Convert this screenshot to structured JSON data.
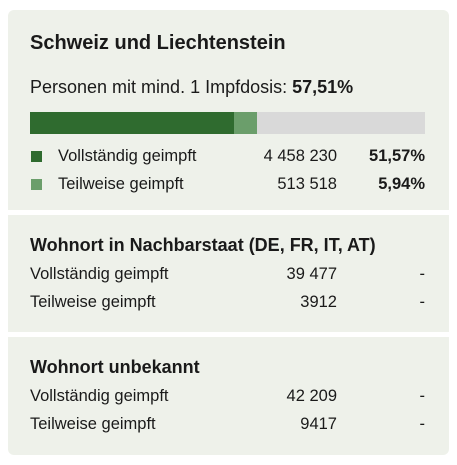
{
  "sections": [
    {
      "title": "Schweiz und Liechtenstein",
      "summary_label": "Personen mit mind. 1 Impfdosis:",
      "summary_value": "57,51%",
      "bar_background": "#d9d9d9",
      "rows": [
        {
          "label": "Vollständig geimpft",
          "count": "4 458 230",
          "percent": 51.57,
          "percent_label": "51,57%",
          "color": "#2f6b2f"
        },
        {
          "label": "Teilweise geimpft",
          "count": "513 518",
          "percent": 5.94,
          "percent_label": "5,94%",
          "color": "#6b9e6b"
        }
      ]
    },
    {
      "title": "Wohnort in Nachbarstaat (DE, FR, IT, AT)",
      "rows": [
        {
          "label": "Vollständig geimpft",
          "count": "39 477",
          "percent_label": "-"
        },
        {
          "label": "Teilweise geimpft",
          "count": "3912",
          "percent_label": "-"
        }
      ]
    },
    {
      "title": "Wohnort unbekannt",
      "rows": [
        {
          "label": "Vollständig geimpft",
          "count": "42 209",
          "percent_label": "-"
        },
        {
          "label": "Teilweise geimpft",
          "count": "9417",
          "percent_label": "-"
        }
      ]
    }
  ]
}
